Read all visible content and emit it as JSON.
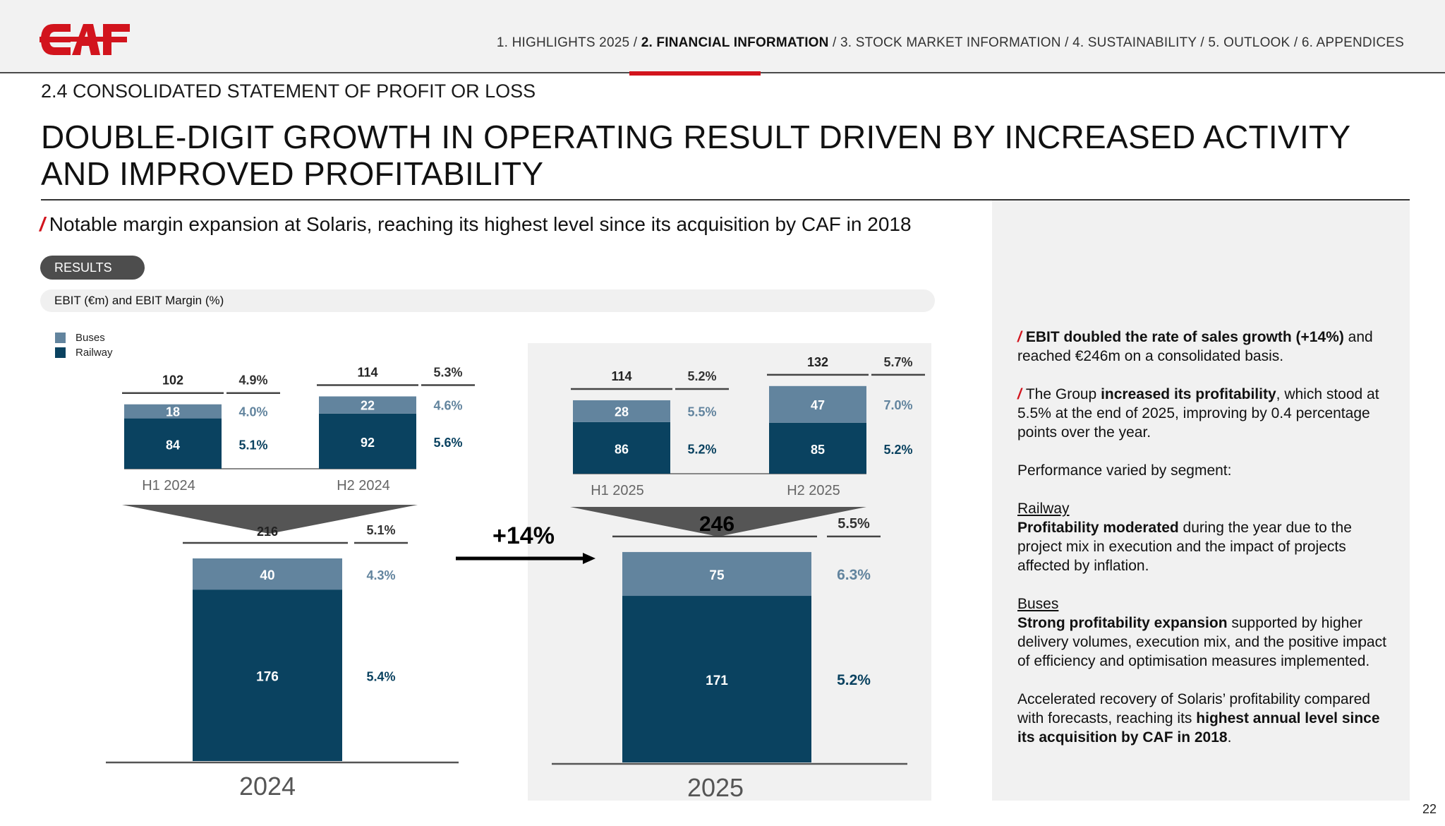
{
  "header": {
    "logo_text": "CAF",
    "nav": [
      {
        "label": "1. HIGHLIGHTS 2025",
        "active": false
      },
      {
        "label": "2. FINANCIAL INFORMATION",
        "active": true
      },
      {
        "label": "3. STOCK MARKET INFORMATION",
        "active": false
      },
      {
        "label": "4. SUSTAINABILITY",
        "active": false
      },
      {
        "label": "5. OUTLOOK",
        "active": false
      },
      {
        "label": "6. APPENDICES",
        "active": false
      }
    ],
    "separator": " / "
  },
  "section_label": "2.4 CONSOLIDATED STATEMENT OF PROFIT OR LOSS",
  "page_title": "DOUBLE-DIGIT GROWTH IN OPERATING RESULT DRIVEN BY INCREASED ACTIVITY AND IMPROVED PROFITABILITY",
  "subtitle": "Notable margin expansion at Solaris, reaching its highest level since its acquisition by CAF in 2018",
  "results_pill": "RESULTS",
  "chart_caption": "EBIT (€m) and EBIT Margin (%)",
  "colors": {
    "brand_red": "#d2141d",
    "buses": "#62849e",
    "railway": "#0a4260",
    "funnel": "#555555"
  },
  "chart_data": {
    "type": "bar",
    "stacked": true,
    "title": "EBIT (€m) and EBIT Margin (%)",
    "legend": [
      "Buses",
      "Railway"
    ],
    "legend_position": "top-left",
    "growth_label": "+14%",
    "half_years": [
      {
        "category": "H1 2024",
        "railway": 84,
        "buses": 18,
        "total": 102,
        "margin_total": "4.9%",
        "margin_buses": "4.0%",
        "margin_railway": "5.1%"
      },
      {
        "category": "H2 2024",
        "railway": 92,
        "buses": 22,
        "total": 114,
        "margin_total": "5.3%",
        "margin_buses": "4.6%",
        "margin_railway": "5.6%"
      },
      {
        "category": "H1 2025",
        "railway": 86,
        "buses": 28,
        "total": 114,
        "margin_total": "5.2%",
        "margin_buses": "5.5%",
        "margin_railway": "5.2%"
      },
      {
        "category": "H2 2025",
        "railway": 85,
        "buses": 47,
        "total": 132,
        "margin_total": "5.7%",
        "margin_buses": "7.0%",
        "margin_railway": "5.2%"
      }
    ],
    "annual": [
      {
        "category": "2024",
        "railway": 176,
        "buses": 40,
        "total": 216,
        "margin_total": "5.1%",
        "margin_buses": "4.3%",
        "margin_railway": "5.4%"
      },
      {
        "category": "2025",
        "railway": 171,
        "buses": 75,
        "total": 246,
        "margin_total": "5.5%",
        "margin_buses": "6.3%",
        "margin_railway": "5.2%"
      }
    ]
  },
  "commentary": {
    "p1_bold": "EBIT doubled the rate of sales growth (+14%)",
    "p1_rest": " and reached €246m on a consolidated basis.",
    "p2_pre": "The Group ",
    "p2_bold": "increased its profitability",
    "p2_rest": ", which stood at 5.5% at the end of 2025, improving by 0.4 percentage points over the year.",
    "p3": "Performance varied by segment:",
    "railway_heading": "Railway",
    "railway_bold": "Profitability moderated",
    "railway_rest": " during the year due to the project mix in execution and the impact of projects affected by inflation.",
    "buses_heading": "Buses",
    "buses_bold": "Strong profitability expansion",
    "buses_rest": " supported by higher delivery volumes, execution mix, and the positive impact of efficiency and optimisation measures implemented.",
    "solaris_pre": "Accelerated recovery of Solaris’ profitability compared with forecasts, reaching its ",
    "solaris_bold": "highest annual level since its acquisition by CAF in 2018",
    "solaris_end": "."
  },
  "page_number": "22"
}
